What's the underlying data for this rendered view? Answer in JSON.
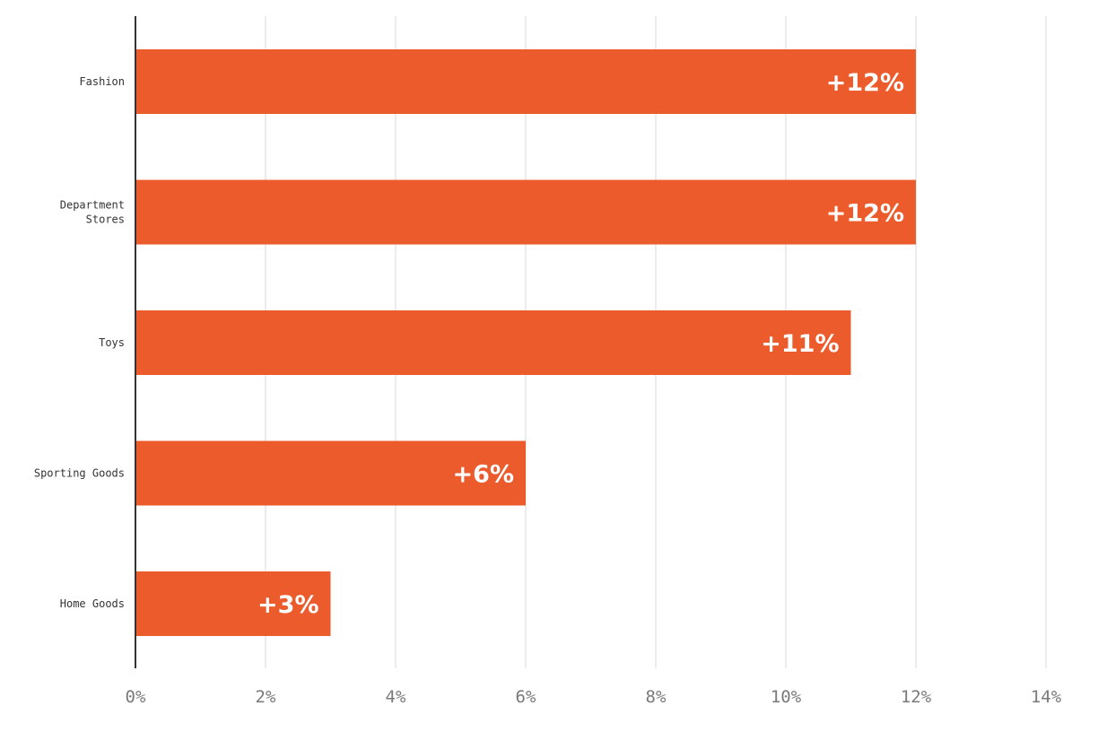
{
  "chart_data": {
    "type": "bar",
    "orientation": "horizontal",
    "categories": [
      "Fashion",
      "Department Stores",
      "Toys",
      "Sporting Goods",
      "Home Goods"
    ],
    "category_label_lines": [
      [
        "Fashion"
      ],
      [
        "Department",
        "Stores"
      ],
      [
        "Toys"
      ],
      [
        "Sporting Goods"
      ],
      [
        "Home Goods"
      ]
    ],
    "values": [
      12,
      12,
      11,
      6,
      3
    ],
    "data_labels": [
      "+12%",
      "+12%",
      "+11%",
      "+6%",
      "+3%"
    ],
    "xlim": [
      0,
      14
    ],
    "x_ticks": [
      0,
      2,
      4,
      6,
      8,
      10,
      12,
      14
    ],
    "x_tick_labels": [
      "0%",
      "2%",
      "4%",
      "6%",
      "8%",
      "10%",
      "12%",
      "14%"
    ],
    "title": "",
    "xlabel": "",
    "ylabel": "",
    "grid": true,
    "bar_color": "#EC5B2C",
    "label_color": "#FFFFFF",
    "axis_color": "#333333",
    "grid_color": "#E6E6E6",
    "tick_label_color": "#7A7A7A"
  }
}
